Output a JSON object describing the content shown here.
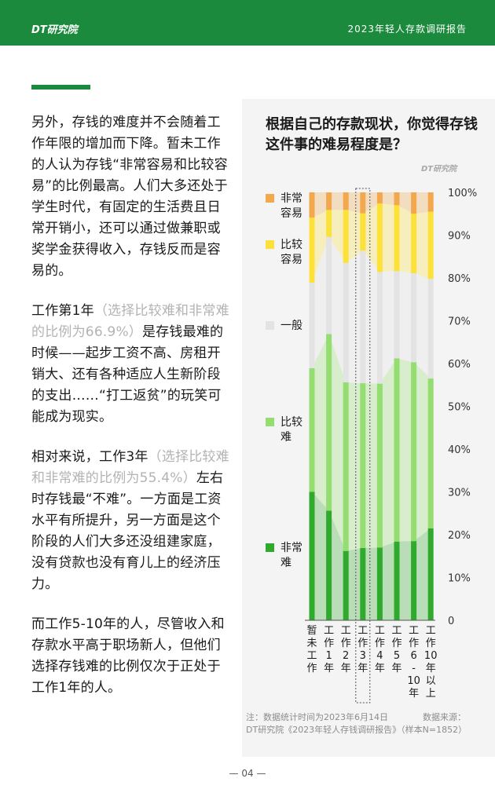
{
  "header": {
    "logo": "DT研究院",
    "title": "2023年轻人存款调研报告"
  },
  "body": {
    "p1": "另外，存钱的难度并不会随着工作年限的增加而下降。暂未工作的人认为存钱“非常容易和比较容易”的比例最高。人们大多还处于学生时代，有固定的生活费且日常开销小，还可以通过做兼职或奖学金获得收入，存钱反而是容易的。",
    "p2_a": "工作第1年",
    "p2_note": "（选择比较难和非常难的比例为66.9%）",
    "p2_b": "是存钱最难的时候——起步工资不高、房租开销大、还有各种适应人生新阶段的支出……“打工返贫”的玩笑可能成为现实。",
    "p3_a": "相对来说，工作3年",
    "p3_note": "（选择比较难和非常难的比例为55.4%）",
    "p3_b": "左右时存钱最“不难”。一方面是工资水平有所提升，另一方面是这个阶段的人们大多还没组建家庭，没有贷款也没有育儿上的经济压力。",
    "p4": "而工作5-10年的人，尽管收入和存款水平高于职场新人，但他们选择存钱难的比例仅次于正处于工作1年的人。"
  },
  "chart_title": "根据自己的存款现状，你觉得存钱这件事的难易程度是？",
  "chart_watermark": "DT研究院",
  "footnote": {
    "left": "注：数据统计时间为2023年6月14日",
    "right": "数据来源：",
    "line2": "DT研究院《2023年轻人存钱调研报告》（样本N=1852）"
  },
  "page_number": "— 04 —",
  "chart_data": {
    "type": "bar",
    "stacked": true,
    "normalized": true,
    "categories": [
      "暂未工作",
      "工作1年",
      "工作2年",
      "工作3年",
      "工作4年",
      "工作5年",
      "工作6-10年",
      "工作10年以上"
    ],
    "category_glyphs": [
      [
        "暂",
        "未",
        "工",
        "作"
      ],
      [
        "工",
        "作",
        "1",
        "年"
      ],
      [
        "工",
        "作",
        "2",
        "年"
      ],
      [
        "工",
        "作",
        "3",
        "年"
      ],
      [
        "工",
        "作",
        "4",
        "年"
      ],
      [
        "工",
        "作",
        "5",
        "年"
      ],
      [
        "工",
        "作",
        "6",
        "-",
        "10",
        "年"
      ],
      [
        "工",
        "作",
        "10",
        "年",
        "以",
        "上"
      ]
    ],
    "highlight_category": "工作3年",
    "series": [
      {
        "name": "非常难",
        "color": "#2faa2c",
        "values": [
          30.0,
          25.6,
          16.2,
          16.9,
          17.0,
          18.4,
          18.5,
          21.5
        ]
      },
      {
        "name": "比较难",
        "color": "#94dd70",
        "values": [
          28.9,
          41.3,
          39.4,
          38.5,
          38.3,
          42.8,
          41.8,
          35.0
        ]
      },
      {
        "name": "一般",
        "color": "#e3e3e3",
        "values": [
          20.0,
          22.7,
          27.9,
          31.0,
          26.1,
          20.4,
          20.8,
          23.3
        ]
      },
      {
        "name": "比较容易",
        "color": "#fde13b",
        "values": [
          15.2,
          6.3,
          12.4,
          8.7,
          16.0,
          15.4,
          13.9,
          15.7
        ]
      },
      {
        "name": "非常容易",
        "color": "#f3a84d",
        "values": [
          5.9,
          4.1,
          4.1,
          4.9,
          2.6,
          3.0,
          5.0,
          4.5
        ]
      }
    ],
    "legend": [
      {
        "line1": "非常",
        "line2": "容易",
        "color": "#f3a84d"
      },
      {
        "line1": "比较",
        "line2": "容易",
        "color": "#fde13b"
      },
      {
        "line1": "一般",
        "line2": "",
        "color": "#e3e3e3"
      },
      {
        "line1": "比较",
        "line2": "难",
        "color": "#94dd70"
      },
      {
        "line1": "非常",
        "line2": "难",
        "color": "#2faa2c"
      }
    ],
    "y_ticks": [
      "0",
      "10%",
      "20%",
      "30%",
      "40%",
      "50%",
      "60%",
      "70%",
      "80%",
      "90%",
      "100%"
    ],
    "ylim": [
      0,
      100
    ],
    "legend_position": "left"
  }
}
